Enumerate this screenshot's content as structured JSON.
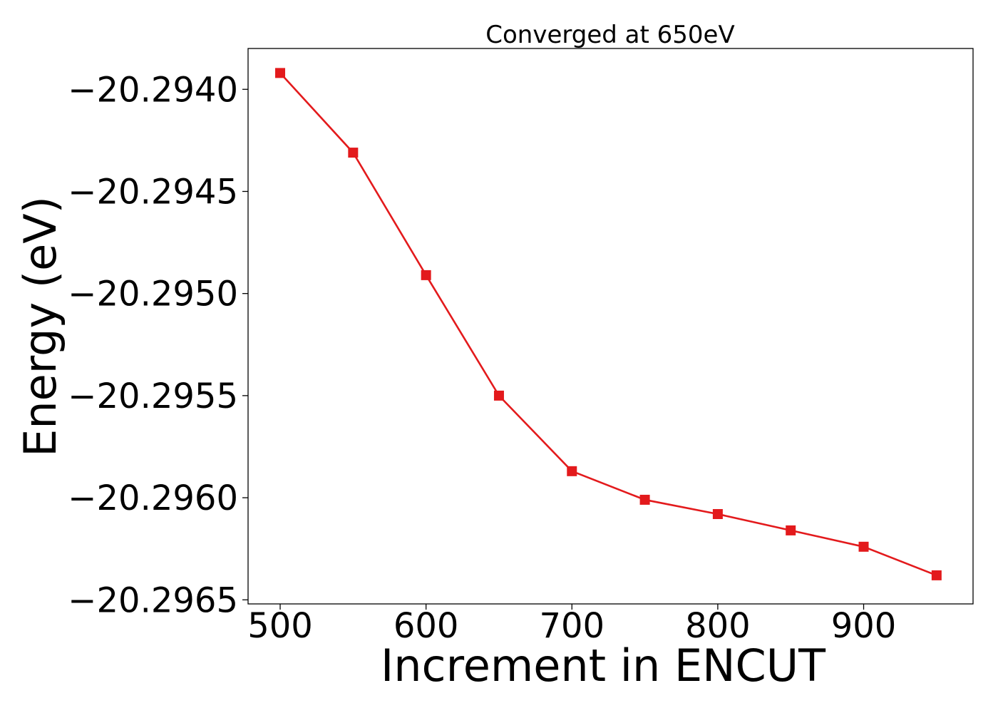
{
  "chart_data": {
    "type": "line",
    "title": "Converged at 650eV",
    "xlabel": "Increment in ENCUT",
    "ylabel": "Energy (eV)",
    "xlim": [
      478,
      975
    ],
    "ylim": [
      -20.29652,
      -20.2938
    ],
    "x_ticks": [
      500,
      600,
      700,
      800,
      900
    ],
    "x_tick_labels": [
      "500",
      "600",
      "700",
      "800",
      "900"
    ],
    "y_ticks": [
      -20.294,
      -20.2945,
      -20.295,
      -20.2955,
      -20.296,
      -20.2965
    ],
    "y_tick_labels": [
      "−20.2940",
      "−20.2945",
      "−20.2950",
      "−20.2955",
      "−20.2960",
      "−20.2965"
    ],
    "grid": false,
    "series": [
      {
        "color": "#e31a1c",
        "marker": "square",
        "x": [
          500,
          550,
          600,
          650,
          700,
          750,
          800,
          850,
          900,
          950
        ],
        "y": [
          -20.29392,
          -20.29431,
          -20.29491,
          -20.2955,
          -20.29587,
          -20.29601,
          -20.29608,
          -20.29616,
          -20.29624,
          -20.29638
        ]
      }
    ]
  }
}
